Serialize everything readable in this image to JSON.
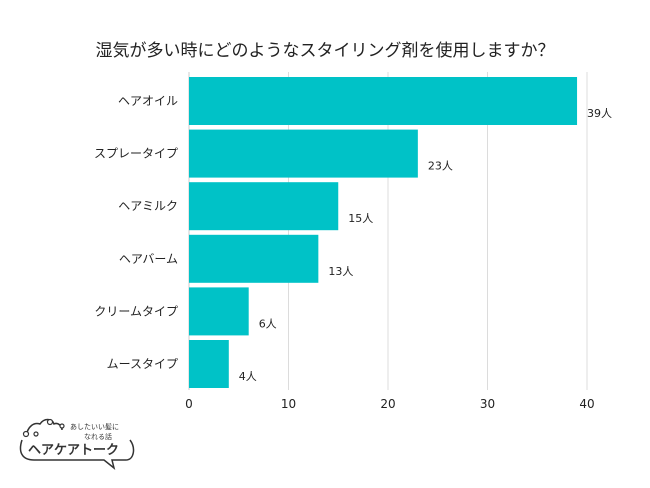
{
  "chart_data": {
    "type": "bar",
    "orientation": "horizontal",
    "title": "湿気が多い時にどのようなスタイリング剤を使用しますか？",
    "categories": [
      "ヘアオイル",
      "スプレータイプ",
      "ヘアミルク",
      "ヘアバーム",
      "クリームタイプ",
      "ムースタイプ"
    ],
    "values": [
      39,
      23,
      15,
      13,
      6,
      4
    ],
    "data_labels": [
      "39人",
      "23人",
      "15人",
      "13人",
      "6人",
      "4人"
    ],
    "xlim": [
      0,
      40
    ],
    "xticks": [
      0,
      10,
      20,
      30,
      40
    ],
    "grid": true,
    "bar_color": "#00c2c7"
  },
  "logo": {
    "tagline_1": "あしたいい髪に",
    "tagline_2": "なれる話",
    "name": "ヘアケアトーク"
  }
}
